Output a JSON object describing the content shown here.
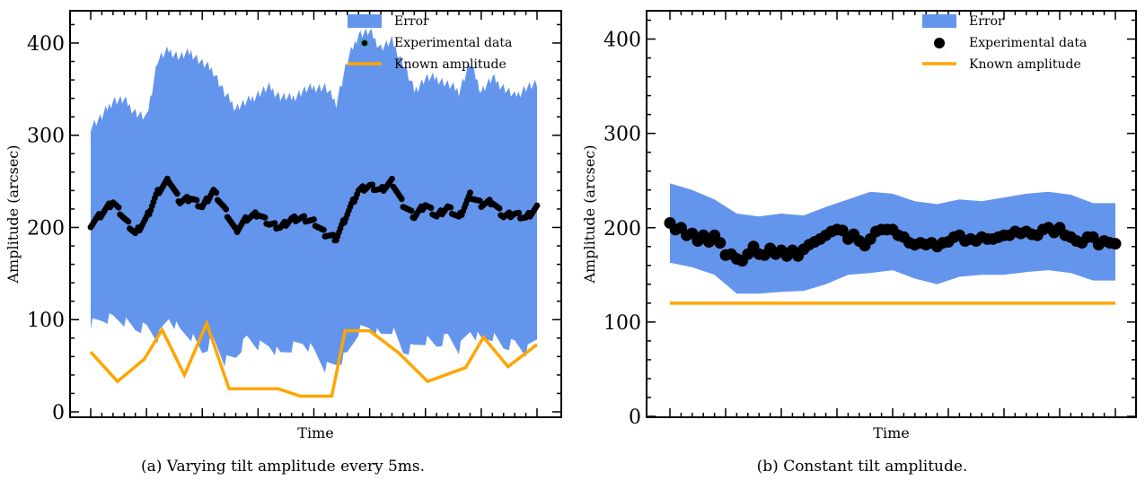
{
  "captions": {
    "a": "(a) Varying tilt amplitude every 5ms.",
    "b": "(b) Constant tilt amplitude."
  },
  "colors": {
    "error": "#6495ED",
    "data": "#000000",
    "known": "#FFA500"
  },
  "chart_data": [
    {
      "type": "line",
      "xlabel": "Time",
      "ylabel": "Amplitude (arcsec)",
      "ylim": [
        0,
        435
      ],
      "xlim": [
        0,
        1
      ],
      "yticks": [
        0,
        100,
        200,
        300,
        400
      ],
      "grid": false,
      "legend_position": "top-right",
      "legend": [
        "Error",
        "Experimental data",
        "Known amplitude"
      ],
      "series": [
        {
          "name": "Experimental data",
          "x": [
            0.0,
            0.025,
            0.05,
            0.075,
            0.1,
            0.125,
            0.15,
            0.175,
            0.2,
            0.225,
            0.25,
            0.275,
            0.3,
            0.325,
            0.35,
            0.375,
            0.4,
            0.425,
            0.45,
            0.475,
            0.5,
            0.525,
            0.55,
            0.575,
            0.6,
            0.625,
            0.65,
            0.675,
            0.7,
            0.725,
            0.75,
            0.775,
            0.8,
            0.825,
            0.85,
            0.875,
            0.9,
            0.925,
            0.95,
            0.975,
            1.0
          ],
          "y": [
            203,
            215,
            228,
            210,
            193,
            210,
            238,
            252,
            228,
            232,
            222,
            240,
            220,
            196,
            210,
            215,
            204,
            200,
            209,
            210,
            206,
            193,
            188,
            215,
            240,
            245,
            240,
            250,
            225,
            212,
            225,
            212,
            222,
            210,
            235,
            225,
            228,
            212,
            215,
            210,
            222
          ]
        },
        {
          "name": "Error upper",
          "x": [
            0.0,
            0.025,
            0.05,
            0.075,
            0.1,
            0.125,
            0.15,
            0.175,
            0.2,
            0.225,
            0.25,
            0.275,
            0.3,
            0.325,
            0.35,
            0.375,
            0.4,
            0.425,
            0.45,
            0.475,
            0.5,
            0.525,
            0.55,
            0.575,
            0.6,
            0.625,
            0.65,
            0.675,
            0.7,
            0.725,
            0.75,
            0.775,
            0.8,
            0.825,
            0.85,
            0.875,
            0.9,
            0.925,
            0.95,
            0.975,
            1.0
          ],
          "y": [
            310,
            320,
            338,
            338,
            325,
            318,
            382,
            392,
            385,
            390,
            378,
            370,
            345,
            330,
            336,
            345,
            352,
            342,
            340,
            348,
            352,
            352,
            335,
            380,
            410,
            412,
            395,
            402,
            378,
            348,
            362,
            362,
            355,
            348,
            378,
            348,
            362,
            352,
            342,
            352,
            355
          ]
        },
        {
          "name": "Error lower",
          "x": [
            0.0,
            0.025,
            0.05,
            0.075,
            0.1,
            0.125,
            0.15,
            0.175,
            0.2,
            0.225,
            0.25,
            0.275,
            0.3,
            0.325,
            0.35,
            0.375,
            0.4,
            0.425,
            0.45,
            0.475,
            0.5,
            0.525,
            0.55,
            0.575,
            0.6,
            0.625,
            0.65,
            0.675,
            0.7,
            0.725,
            0.75,
            0.775,
            0.8,
            0.825,
            0.85,
            0.875,
            0.9,
            0.925,
            0.95,
            0.975,
            1.0
          ],
          "y": [
            95,
            100,
            102,
            98,
            90,
            92,
            80,
            102,
            88,
            82,
            65,
            78,
            55,
            60,
            80,
            72,
            72,
            62,
            70,
            75,
            66,
            48,
            52,
            62,
            88,
            92,
            82,
            90,
            65,
            70,
            78,
            72,
            82,
            68,
            88,
            78,
            82,
            70,
            75,
            65,
            80
          ]
        },
        {
          "name": "Known amplitude",
          "x": [
            0.0,
            0.06,
            0.12,
            0.16,
            0.21,
            0.26,
            0.31,
            0.42,
            0.47,
            0.54,
            0.57,
            0.625,
            0.69,
            0.755,
            0.84,
            0.88,
            0.935,
            1.0
          ],
          "y": [
            65,
            33,
            57,
            89,
            40,
            96,
            25,
            25,
            17,
            17,
            88,
            88,
            64,
            33,
            48,
            81,
            49,
            73
          ]
        }
      ]
    },
    {
      "type": "scatter",
      "xlabel": "Time",
      "ylabel": "Amplitude (arcsec)",
      "ylim": [
        0,
        430
      ],
      "xlim": [
        0,
        1
      ],
      "yticks": [
        0,
        100,
        200,
        300,
        400
      ],
      "grid": false,
      "legend_position": "top-right",
      "legend": [
        "Error",
        "Experimental data",
        "Known amplitude"
      ],
      "series": [
        {
          "name": "Experimental data",
          "x": [
            0.0,
            0.0125,
            0.025,
            0.0375,
            0.05,
            0.0625,
            0.075,
            0.0875,
            0.1,
            0.1125,
            0.125,
            0.1375,
            0.15,
            0.1625,
            0.175,
            0.1875,
            0.2,
            0.2125,
            0.225,
            0.2375,
            0.25,
            0.2625,
            0.275,
            0.2875,
            0.3,
            0.3125,
            0.325,
            0.3375,
            0.35,
            0.3625,
            0.375,
            0.3875,
            0.4,
            0.4125,
            0.425,
            0.4375,
            0.45,
            0.4625,
            0.475,
            0.4875,
            0.5,
            0.5125,
            0.525,
            0.5375,
            0.55,
            0.5625,
            0.575,
            0.5875,
            0.6,
            0.6125,
            0.625,
            0.6375,
            0.65,
            0.6625,
            0.675,
            0.6875,
            0.7,
            0.7125,
            0.725,
            0.7375,
            0.75,
            0.7625,
            0.775,
            0.7875,
            0.8,
            0.8125,
            0.825,
            0.8375,
            0.85,
            0.8625,
            0.875,
            0.8875,
            0.9,
            0.9125,
            0.925,
            0.9375,
            0.95,
            0.9625,
            0.975,
            0.9875,
            1.0
          ],
          "y": [
            205,
            198,
            200,
            192,
            194,
            186,
            192,
            185,
            192,
            184,
            171,
            172,
            167,
            165,
            172,
            180,
            172,
            171,
            178,
            172,
            176,
            170,
            176,
            170,
            177,
            182,
            185,
            188,
            192,
            196,
            198,
            197,
            188,
            193,
            186,
            181,
            188,
            196,
            198,
            198,
            198,
            192,
            190,
            184,
            182,
            184,
            182,
            184,
            180,
            184,
            185,
            190,
            192,
            186,
            188,
            186,
            190,
            188,
            188,
            190,
            192,
            192,
            196,
            194,
            196,
            193,
            192,
            198,
            200,
            195,
            200,
            192,
            190,
            186,
            184,
            190,
            190,
            182,
            186,
            184,
            183
          ]
        },
        {
          "name": "Error upper",
          "x": [
            0.0,
            0.05,
            0.1,
            0.15,
            0.2,
            0.25,
            0.3,
            0.35,
            0.4,
            0.45,
            0.5,
            0.55,
            0.6,
            0.65,
            0.7,
            0.75,
            0.8,
            0.85,
            0.9,
            0.95,
            1.0
          ],
          "y": [
            247,
            240,
            230,
            215,
            212,
            215,
            213,
            222,
            230,
            238,
            236,
            228,
            225,
            230,
            228,
            232,
            236,
            238,
            235,
            226,
            226
          ]
        },
        {
          "name": "Error lower",
          "x": [
            0.0,
            0.05,
            0.1,
            0.15,
            0.2,
            0.25,
            0.3,
            0.35,
            0.4,
            0.45,
            0.5,
            0.55,
            0.6,
            0.65,
            0.7,
            0.75,
            0.8,
            0.85,
            0.9,
            0.95,
            1.0
          ],
          "y": [
            163,
            158,
            150,
            130,
            130,
            132,
            133,
            140,
            150,
            152,
            155,
            146,
            140,
            148,
            150,
            150,
            153,
            155,
            152,
            144,
            144
          ]
        },
        {
          "name": "Known amplitude",
          "x": [
            0.0,
            1.0
          ],
          "y": [
            120,
            120
          ]
        }
      ]
    }
  ]
}
